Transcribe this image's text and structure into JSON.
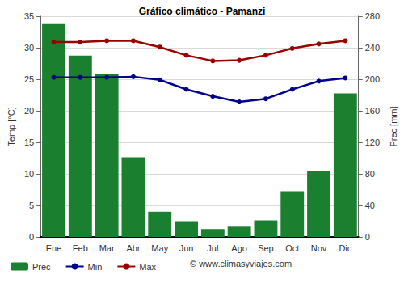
{
  "chart_data": {
    "type": "bar",
    "title": "Gráfico climático - Pamanzi",
    "y_label": "Temp [°C]",
    "y2_label": "Prec [mm]",
    "categories": [
      "Ene",
      "Feb",
      "Mar",
      "Abr",
      "May",
      "Jun",
      "Jul",
      "Ago",
      "Sep",
      "Oct",
      "Nov",
      "Dic"
    ],
    "series": [
      {
        "name": "Prec",
        "type": "bar",
        "axis": "y2",
        "color": "#1a7f2e",
        "values": [
          270,
          230,
          207,
          101,
          32,
          20,
          10,
          13,
          21,
          58,
          83,
          182
        ]
      },
      {
        "name": "Min",
        "type": "line",
        "color": "#00008b",
        "marker": "circle",
        "values": [
          25.3,
          25.3,
          25.3,
          25.4,
          24.9,
          23.4,
          22.3,
          21.4,
          21.9,
          23.4,
          24.7,
          25.2
        ]
      },
      {
        "name": "Max",
        "type": "line",
        "color": "#990000",
        "marker": "circle",
        "values": [
          30.9,
          30.9,
          31.1,
          31.1,
          30.1,
          28.8,
          27.9,
          28.0,
          28.8,
          29.9,
          30.6,
          31.1
        ]
      }
    ],
    "ylim": [
      0,
      35
    ],
    "yticks": [
      0,
      5,
      10,
      15,
      20,
      25,
      30,
      35
    ],
    "y2lim": [
      0,
      280
    ],
    "y2ticks": [
      0,
      40,
      80,
      120,
      160,
      200,
      240,
      280
    ],
    "grid": true,
    "legend": "bottom",
    "annotations": [
      "© www.climasyviajes.com"
    ]
  }
}
